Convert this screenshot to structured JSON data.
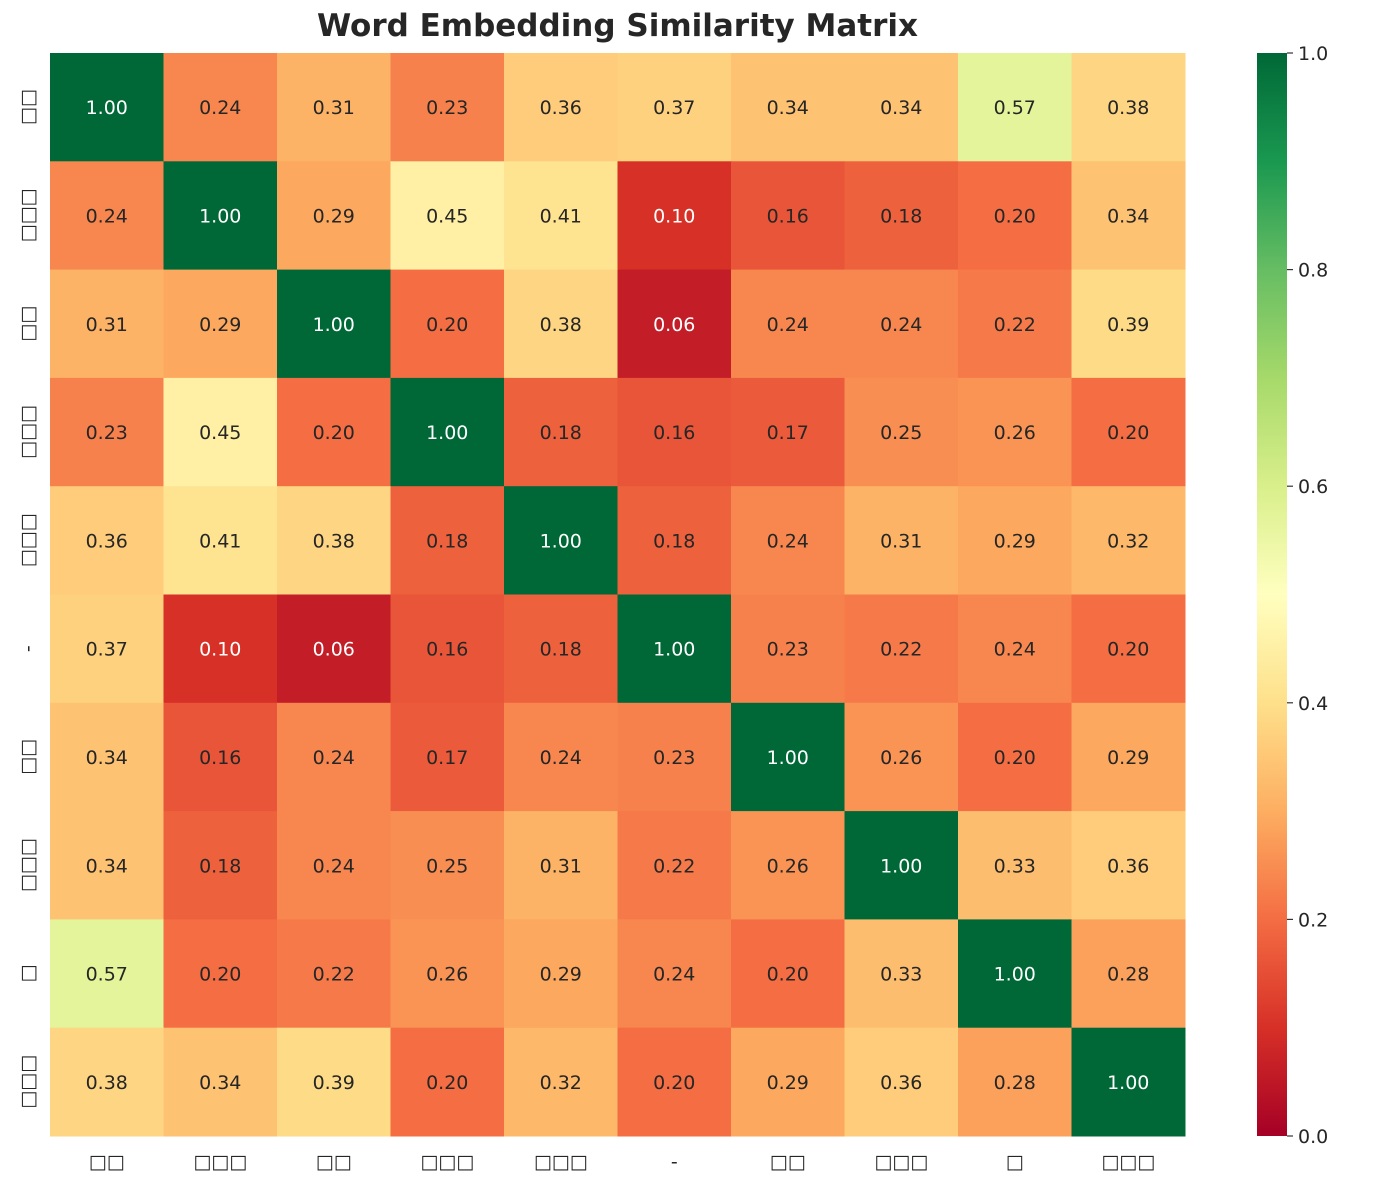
{
  "chart_data": {
    "type": "heatmap",
    "title": "Word Embedding Similarity Matrix",
    "x_labels": [
      "□□",
      "□□□",
      "□□",
      "□□□",
      "□□□",
      "-",
      "□□",
      "□□□",
      "□",
      "□□□"
    ],
    "y_labels": [
      "□□",
      "□□□",
      "□□",
      "□□□",
      "□□□",
      "-",
      "□□",
      "□□□",
      "□",
      "□□□"
    ],
    "values": [
      [
        1.0,
        0.24,
        0.31,
        0.23,
        0.36,
        0.37,
        0.34,
        0.34,
        0.57,
        0.38
      ],
      [
        0.24,
        1.0,
        0.29,
        0.45,
        0.41,
        0.1,
        0.16,
        0.18,
        0.2,
        0.34
      ],
      [
        0.31,
        0.29,
        1.0,
        0.2,
        0.38,
        0.06,
        0.24,
        0.24,
        0.22,
        0.39
      ],
      [
        0.23,
        0.45,
        0.2,
        1.0,
        0.18,
        0.16,
        0.17,
        0.25,
        0.26,
        0.2
      ],
      [
        0.36,
        0.41,
        0.38,
        0.18,
        1.0,
        0.18,
        0.24,
        0.31,
        0.29,
        0.32
      ],
      [
        0.37,
        0.1,
        0.06,
        0.16,
        0.18,
        1.0,
        0.23,
        0.22,
        0.24,
        0.2
      ],
      [
        0.34,
        0.16,
        0.24,
        0.17,
        0.24,
        0.23,
        1.0,
        0.26,
        0.2,
        0.29
      ],
      [
        0.34,
        0.18,
        0.24,
        0.25,
        0.31,
        0.22,
        0.26,
        1.0,
        0.33,
        0.36
      ],
      [
        0.57,
        0.2,
        0.22,
        0.26,
        0.29,
        0.24,
        0.2,
        0.33,
        1.0,
        0.28
      ],
      [
        0.38,
        0.34,
        0.39,
        0.2,
        0.32,
        0.2,
        0.29,
        0.36,
        0.28,
        1.0
      ]
    ],
    "colormap": "RdYlGn",
    "colormap_stops": [
      "#a50026",
      "#d73027",
      "#f46d43",
      "#fdae61",
      "#fee08b",
      "#ffffbf",
      "#d9ef8b",
      "#a6d96a",
      "#66bd63",
      "#1a9850",
      "#006837"
    ],
    "vmin": 0.0,
    "vmax": 1.0,
    "colorbar_ticks": [
      "0.0",
      "0.2",
      "0.4",
      "0.6",
      "0.8",
      "1.0"
    ],
    "annotation_format": "2 decimals",
    "grid": false,
    "legend": "colorbar right"
  }
}
